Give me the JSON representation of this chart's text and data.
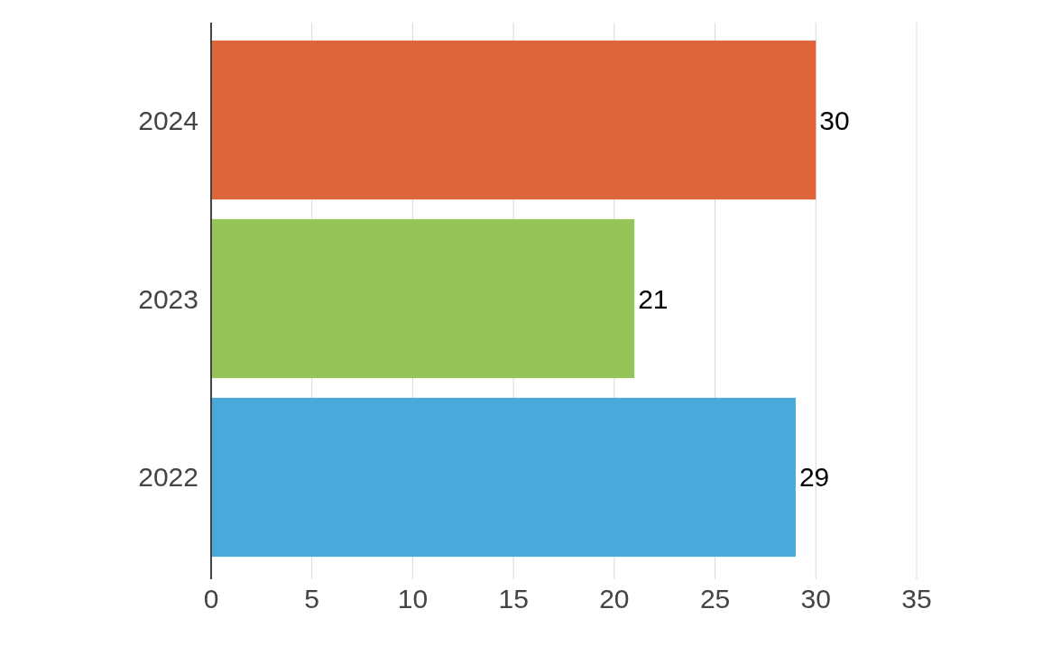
{
  "chart_data": {
    "type": "bar",
    "orientation": "horizontal",
    "categories": [
      "2024",
      "2023",
      "2022"
    ],
    "values": [
      30,
      21,
      29
    ],
    "colors": [
      "#dd6539",
      "#97c459",
      "#4aa9db"
    ],
    "xlim": [
      0,
      35
    ],
    "xticks": [
      0,
      5,
      10,
      15,
      20,
      25,
      30,
      35
    ],
    "grid": "x",
    "data_labels": true
  }
}
